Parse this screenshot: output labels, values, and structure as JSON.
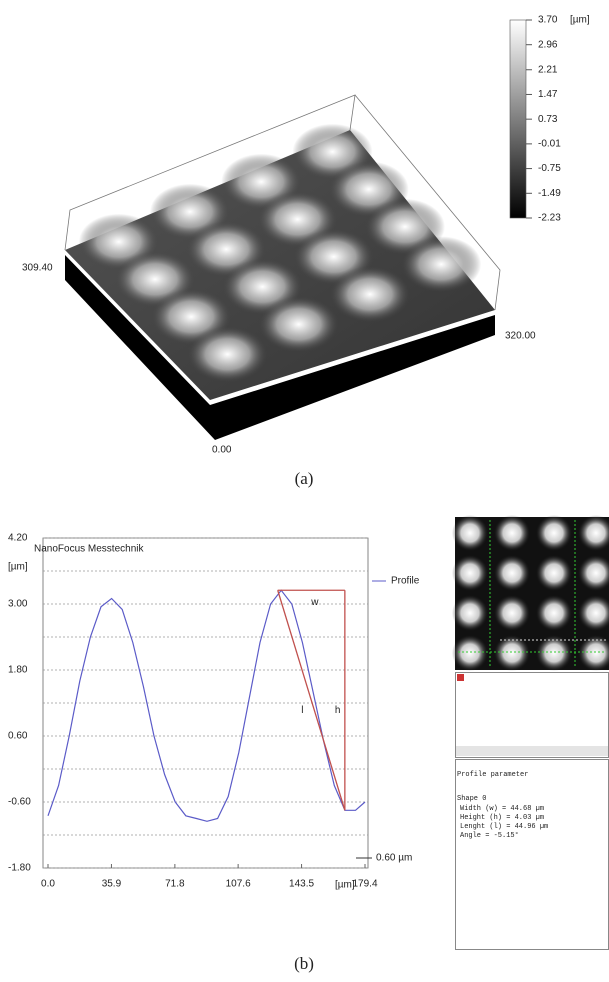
{
  "chart_data": [
    {
      "type": "line",
      "title": "NanoFocus Messtechnik",
      "x": [
        0,
        6,
        12,
        18,
        24,
        30,
        36,
        42,
        48,
        54,
        60,
        66,
        72,
        78,
        84,
        90,
        96,
        102,
        108,
        114,
        120,
        126,
        132,
        138,
        144,
        150,
        156,
        162,
        168,
        174,
        179.4
      ],
      "series": [
        {
          "name": "Profile",
          "color": "#5b5bc8",
          "values": [
            -0.85,
            -0.3,
            0.6,
            1.6,
            2.4,
            2.95,
            3.1,
            2.9,
            2.3,
            1.5,
            0.6,
            -0.1,
            -0.6,
            -0.85,
            -0.9,
            -0.95,
            -0.9,
            -0.5,
            0.3,
            1.3,
            2.3,
            3.0,
            3.25,
            3.0,
            2.3,
            1.4,
            0.5,
            -0.3,
            -0.75,
            -0.75,
            -0.6
          ]
        }
      ],
      "xlim": [
        0,
        179.4
      ],
      "ylim": [
        -1.8,
        4.2
      ],
      "xticks": [
        {
          "value": 0,
          "label": "0.0"
        },
        35.9,
        71.8,
        107.6,
        143.5,
        179.4
      ],
      "yticks": [
        {
          "value": 4.2,
          "label": "4.20"
        },
        {
          "value": 3,
          "label": "3.00"
        },
        {
          "value": 1.8,
          "label": "1.80"
        },
        {
          "value": 0.6,
          "label": "0.60"
        },
        {
          "value": -0.6,
          "label": "-0.60"
        },
        {
          "value": -1.8,
          "label": "-1.80"
        }
      ],
      "ygrid": [
        3.6,
        2.4,
        1.2,
        0,
        -1.2
      ],
      "grid": true,
      "y_label": "[µm]",
      "x_label": "[µm]",
      "triangle": {
        "x": [
          130,
          168
        ],
        "y": [
          3.25,
          -0.75
        ],
        "color": "#c0504d",
        "labels": [
          "w",
          "h",
          "l"
        ]
      },
      "scale_note": "0.60 µm"
    },
    {
      "type": "colorbar",
      "ylim": [
        -2.23,
        3.7
      ],
      "yticks": [
        {
          "value": 3.7,
          "label": "3.70"
        },
        2.96,
        2.21,
        1.47,
        0.73,
        -0.01,
        -0.75,
        -1.49,
        -2.23
      ],
      "unit": "[µm]"
    }
  ],
  "panel_a": {
    "axis_labels": [
      "309.40",
      "320.00",
      "0.00"
    ],
    "caption": "(a)"
  },
  "panel_b": {
    "caption": "(b)"
  },
  "side_panel": {
    "title": "Profile parameter",
    "shape": "Shape  0",
    "rows": [
      "Width (w)    = 44.68 µm",
      "Height (h)   = 4.03 µm",
      "Lenght (l)   = 44.96 µm",
      "Angle        = -5.15°"
    ]
  }
}
